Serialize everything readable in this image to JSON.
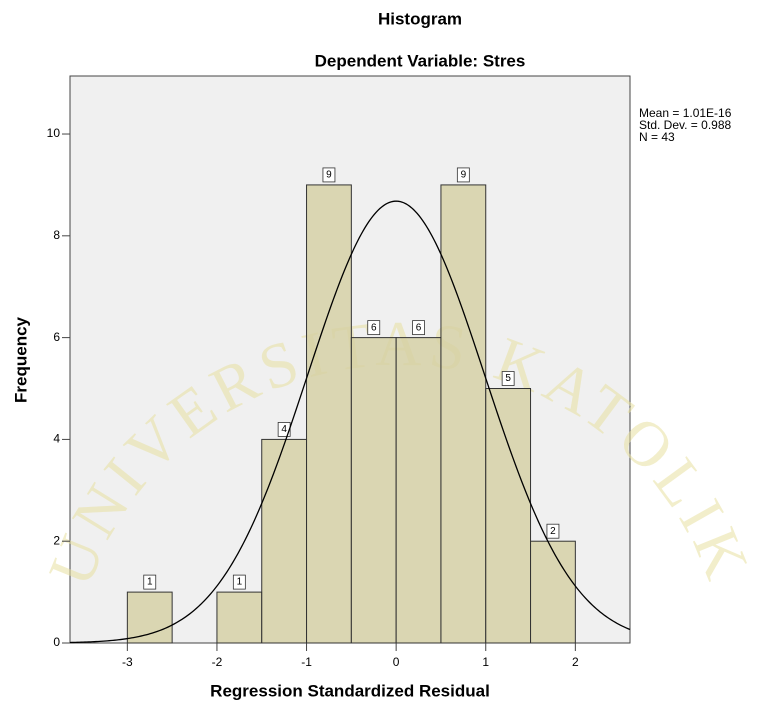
{
  "chart_data": {
    "type": "histogram",
    "title": "Histogram",
    "subtitle": "Dependent Variable: Stres",
    "x_label": "Regression Standardized Residual",
    "y_label": "Frequency",
    "bins": [
      -3,
      -2.5,
      -2,
      -1.5,
      -1,
      -0.5,
      0,
      0.5,
      1,
      1.5,
      2
    ],
    "values": [
      1,
      0,
      1,
      4,
      9,
      6,
      6,
      9,
      5,
      2
    ],
    "color": "#d4d0a2",
    "curve_color": "#000000",
    "stats": {
      "mean": {
        "value": 1.01e-16,
        "label": "Mean = 1.01E-16"
      },
      "sd": {
        "value": 0.988,
        "label": "Std. Dev. = 0.988"
      },
      "n": {
        "value": 43,
        "label": "N = 43"
      }
    },
    "xlim": [
      -3.64,
      2.61
    ],
    "ylim": [
      0,
      11.14
    ],
    "xticks": [
      -3,
      -2,
      -1,
      0,
      1,
      2
    ],
    "yticks": [
      0,
      2,
      4,
      6,
      8,
      10
    ],
    "watermark": "UNIVERSITAS KATOLIK"
  }
}
